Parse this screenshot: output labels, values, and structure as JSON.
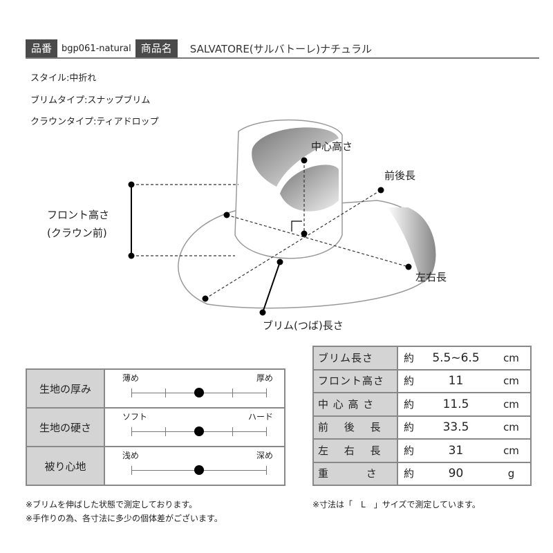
{
  "header": {
    "code_label": "品番",
    "code": "bgp061-natural",
    "name_label": "商品名",
    "name": "SALVATORE(サルバトーレ)ナチュラル"
  },
  "specs": [
    "スタイル:中折れ",
    "ブリムタイプ:スナップブリム",
    "クラウンタイプ:ティアドロップ"
  ],
  "diagram": {
    "center_height": "中心高さ",
    "front_back": "前後長",
    "front_height_1": "フロント高さ",
    "front_height_2": "(クラウン前)",
    "left_right": "左右長",
    "brim": "ブリム(つば)長さ"
  },
  "feel": [
    {
      "label": "生地の厚み",
      "left": "薄め",
      "right": "厚め",
      "level": 3,
      "of": 5,
      "ticks": true
    },
    {
      "label": "生地の硬さ",
      "left": "ソフト",
      "right": "ハード",
      "level": 3,
      "of": 5,
      "ticks": true
    },
    {
      "label": "被り心地",
      "left": "浅め",
      "right": "深め",
      "level": 3,
      "of": 5,
      "ticks": false
    }
  ],
  "sizes": [
    {
      "label": "ブリム長さ",
      "approx": "約",
      "value": "5.5~6.5",
      "unit": "cm"
    },
    {
      "label": "フロント高さ",
      "approx": "約",
      "value": "11",
      "unit": "cm"
    },
    {
      "label": "中 心 高 さ",
      "approx": "約",
      "value": "11.5",
      "unit": "cm"
    },
    {
      "label": "前　 後　 長",
      "approx": "約",
      "value": "33.5",
      "unit": "cm"
    },
    {
      "label": "左　 右　 長",
      "approx": "約",
      "value": "31",
      "unit": "cm"
    },
    {
      "label": "重　　　 さ",
      "approx": "約",
      "value": "90",
      "unit": "g"
    }
  ],
  "notes": {
    "left1": "※ブリムを伸ばした状態で測定しております。",
    "left2": "※手作りの為、各寸法に多少の個体差がございます。",
    "right": "※寸法は「　L　」サイズで測定しています。"
  }
}
